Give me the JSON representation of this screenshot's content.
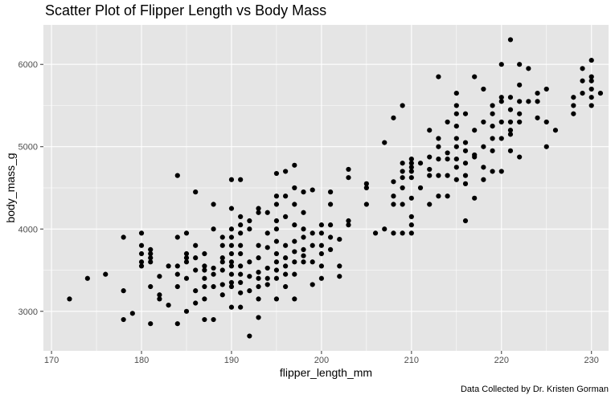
{
  "chart_data": {
    "type": "scatter",
    "title": "Scatter Plot of Flipper Length vs Body Mass",
    "xlabel": "flipper_length_mm",
    "ylabel": "body_mass_g",
    "caption": "Data Collected by Dr. Kristen Gorman",
    "xlim": [
      169.1,
      231.9
    ],
    "ylim": [
      2520,
      6480
    ],
    "x_ticks": [
      170,
      180,
      190,
      200,
      210,
      220,
      230
    ],
    "y_ticks": [
      3000,
      4000,
      5000,
      6000
    ],
    "grid": true,
    "background_color": "#e5e5e5",
    "grid_color": "#ffffff",
    "point_color": "#000000",
    "points": [
      [
        172,
        3150
      ],
      [
        174,
        3400
      ],
      [
        176,
        3450
      ],
      [
        178,
        2900
      ],
      [
        178,
        3250
      ],
      [
        178,
        3900
      ],
      [
        179,
        2975
      ],
      [
        180,
        3550
      ],
      [
        180,
        3600
      ],
      [
        180,
        3700
      ],
      [
        180,
        3800
      ],
      [
        180,
        3950
      ],
      [
        181,
        2850
      ],
      [
        181,
        3300
      ],
      [
        181,
        3600
      ],
      [
        181,
        3650
      ],
      [
        181,
        3700
      ],
      [
        181,
        3750
      ],
      [
        182,
        3150
      ],
      [
        182,
        3200
      ],
      [
        182,
        3425
      ],
      [
        183,
        3075
      ],
      [
        183,
        3550
      ],
      [
        184,
        2850
      ],
      [
        184,
        3300
      ],
      [
        184,
        3450
      ],
      [
        184,
        3550
      ],
      [
        184,
        3900
      ],
      [
        184,
        4650
      ],
      [
        185,
        3000
      ],
      [
        185,
        3400
      ],
      [
        185,
        3600
      ],
      [
        185,
        3650
      ],
      [
        185,
        3700
      ],
      [
        185,
        3950
      ],
      [
        186,
        3100
      ],
      [
        186,
        3250
      ],
      [
        186,
        3500
      ],
      [
        186,
        3650
      ],
      [
        186,
        3800
      ],
      [
        186,
        4450
      ],
      [
        187,
        2900
      ],
      [
        187,
        3150
      ],
      [
        187,
        3300
      ],
      [
        187,
        3400
      ],
      [
        187,
        3500
      ],
      [
        187,
        3550
      ],
      [
        187,
        3700
      ],
      [
        188,
        2900
      ],
      [
        188,
        3300
      ],
      [
        188,
        3450
      ],
      [
        188,
        3525
      ],
      [
        188,
        4000
      ],
      [
        188,
        4300
      ],
      [
        189,
        3200
      ],
      [
        189,
        3325
      ],
      [
        189,
        3500
      ],
      [
        189,
        3600
      ],
      [
        189,
        3650
      ],
      [
        189,
        3800
      ],
      [
        189,
        3900
      ],
      [
        190,
        3050
      ],
      [
        190,
        3300
      ],
      [
        190,
        3350
      ],
      [
        190,
        3450
      ],
      [
        190,
        3550
      ],
      [
        190,
        3600
      ],
      [
        190,
        3700
      ],
      [
        190,
        3800
      ],
      [
        190,
        3900
      ],
      [
        190,
        4000
      ],
      [
        190,
        4250
      ],
      [
        190,
        4600
      ],
      [
        191,
        3050
      ],
      [
        191,
        3225
      ],
      [
        191,
        3350
      ],
      [
        191,
        3450
      ],
      [
        191,
        3550
      ],
      [
        191,
        3700
      ],
      [
        191,
        3800
      ],
      [
        191,
        3950
      ],
      [
        191,
        4050
      ],
      [
        191,
        4150
      ],
      [
        191,
        4600
      ],
      [
        192,
        2700
      ],
      [
        192,
        3250
      ],
      [
        192,
        3425
      ],
      [
        192,
        3600
      ],
      [
        192,
        4000
      ],
      [
        192,
        4100
      ],
      [
        193,
        2925
      ],
      [
        193,
        3150
      ],
      [
        193,
        3300
      ],
      [
        193,
        3400
      ],
      [
        193,
        3475
      ],
      [
        193,
        3650
      ],
      [
        193,
        3800
      ],
      [
        193,
        4200
      ],
      [
        193,
        4250
      ],
      [
        194,
        3325
      ],
      [
        194,
        3400
      ],
      [
        194,
        3525
      ],
      [
        194,
        3775
      ],
      [
        194,
        3950
      ],
      [
        194,
        4200
      ],
      [
        195,
        3150
      ],
      [
        195,
        3400
      ],
      [
        195,
        3500
      ],
      [
        195,
        3600
      ],
      [
        195,
        3700
      ],
      [
        195,
        3850
      ],
      [
        195,
        4000
      ],
      [
        195,
        4100
      ],
      [
        195,
        4300
      ],
      [
        195,
        4400
      ],
      [
        195,
        4675
      ],
      [
        196,
        3300
      ],
      [
        196,
        3450
      ],
      [
        196,
        3550
      ],
      [
        196,
        3650
      ],
      [
        196,
        3800
      ],
      [
        196,
        4150
      ],
      [
        196,
        4400
      ],
      [
        196,
        4700
      ],
      [
        197,
        3150
      ],
      [
        197,
        3450
      ],
      [
        197,
        3600
      ],
      [
        197,
        3725
      ],
      [
        197,
        3850
      ],
      [
        197,
        4050
      ],
      [
        197,
        4300
      ],
      [
        197,
        4500
      ],
      [
        197,
        4775
      ],
      [
        198,
        3600
      ],
      [
        198,
        3675
      ],
      [
        198,
        3750
      ],
      [
        198,
        3900
      ],
      [
        198,
        4000
      ],
      [
        198,
        4200
      ],
      [
        198,
        4450
      ],
      [
        199,
        3325
      ],
      [
        199,
        3600
      ],
      [
        199,
        3800
      ],
      [
        199,
        3950
      ],
      [
        199,
        4475
      ],
      [
        200,
        3400
      ],
      [
        200,
        3550
      ],
      [
        200,
        3700
      ],
      [
        200,
        3800
      ],
      [
        200,
        3950
      ],
      [
        200,
        4050
      ],
      [
        201,
        3750
      ],
      [
        201,
        3900
      ],
      [
        201,
        4050
      ],
      [
        201,
        4300
      ],
      [
        201,
        4450
      ],
      [
        202,
        3425
      ],
      [
        202,
        3550
      ],
      [
        202,
        3875
      ],
      [
        203,
        4050
      ],
      [
        203,
        4100
      ],
      [
        203,
        4625
      ],
      [
        203,
        4725
      ],
      [
        205,
        4300
      ],
      [
        205,
        4500
      ],
      [
        205,
        4550
      ],
      [
        206,
        3950
      ],
      [
        207,
        4000
      ],
      [
        207,
        5050
      ],
      [
        208,
        3950
      ],
      [
        208,
        4300
      ],
      [
        208,
        4400
      ],
      [
        208,
        4575
      ],
      [
        208,
        5350
      ],
      [
        209,
        3950
      ],
      [
        209,
        4300
      ],
      [
        209,
        4500
      ],
      [
        209,
        4625
      ],
      [
        209,
        4700
      ],
      [
        209,
        4800
      ],
      [
        209,
        5500
      ],
      [
        210,
        3950
      ],
      [
        210,
        4050
      ],
      [
        210,
        4150
      ],
      [
        210,
        4375
      ],
      [
        210,
        4625
      ],
      [
        210,
        4700
      ],
      [
        210,
        4750
      ],
      [
        210,
        4800
      ],
      [
        210,
        4850
      ],
      [
        211,
        4500
      ],
      [
        211,
        4800
      ],
      [
        212,
        4300
      ],
      [
        212,
        4650
      ],
      [
        212,
        4725
      ],
      [
        212,
        4875
      ],
      [
        212,
        5200
      ],
      [
        213,
        4400
      ],
      [
        213,
        4650
      ],
      [
        213,
        4850
      ],
      [
        213,
        5000
      ],
      [
        213,
        5100
      ],
      [
        213,
        5850
      ],
      [
        214,
        4400
      ],
      [
        214,
        4650
      ],
      [
        214,
        4850
      ],
      [
        214,
        4925
      ],
      [
        214,
        5300
      ],
      [
        215,
        4600
      ],
      [
        215,
        4750
      ],
      [
        215,
        4850
      ],
      [
        215,
        5000
      ],
      [
        215,
        5100
      ],
      [
        215,
        5250
      ],
      [
        215,
        5400
      ],
      [
        215,
        5500
      ],
      [
        215,
        5650
      ],
      [
        216,
        4100
      ],
      [
        216,
        4550
      ],
      [
        216,
        4650
      ],
      [
        216,
        4800
      ],
      [
        216,
        4950
      ],
      [
        216,
        5050
      ],
      [
        216,
        5400
      ],
      [
        217,
        4375
      ],
      [
        217,
        4875
      ],
      [
        217,
        4900
      ],
      [
        217,
        5200
      ],
      [
        217,
        5850
      ],
      [
        218,
        4600
      ],
      [
        218,
        4750
      ],
      [
        218,
        5000
      ],
      [
        218,
        5300
      ],
      [
        218,
        5700
      ],
      [
        219,
        4700
      ],
      [
        219,
        4950
      ],
      [
        219,
        5100
      ],
      [
        219,
        5250
      ],
      [
        219,
        5400
      ],
      [
        219,
        5500
      ],
      [
        220,
        4700
      ],
      [
        220,
        5100
      ],
      [
        220,
        5300
      ],
      [
        220,
        5550
      ],
      [
        220,
        5600
      ],
      [
        220,
        6000
      ],
      [
        221,
        4950
      ],
      [
        221,
        5150
      ],
      [
        221,
        5200
      ],
      [
        221,
        5300
      ],
      [
        221,
        5450
      ],
      [
        221,
        5600
      ],
      [
        221,
        6300
      ],
      [
        222,
        4875
      ],
      [
        222,
        5300
      ],
      [
        222,
        5400
      ],
      [
        222,
        5550
      ],
      [
        222,
        5750
      ],
      [
        222,
        6000
      ],
      [
        223,
        5550
      ],
      [
        223,
        5950
      ],
      [
        224,
        5350
      ],
      [
        224,
        5550
      ],
      [
        224,
        5650
      ],
      [
        225,
        5000
      ],
      [
        225,
        5300
      ],
      [
        225,
        5700
      ],
      [
        226,
        5200
      ],
      [
        228,
        5400
      ],
      [
        228,
        5500
      ],
      [
        228,
        5600
      ],
      [
        229,
        5650
      ],
      [
        229,
        5800
      ],
      [
        229,
        5950
      ],
      [
        230,
        5500
      ],
      [
        230,
        5600
      ],
      [
        230,
        5700
      ],
      [
        230,
        5800
      ],
      [
        230,
        5850
      ],
      [
        230,
        6050
      ],
      [
        231,
        5650
      ]
    ]
  }
}
